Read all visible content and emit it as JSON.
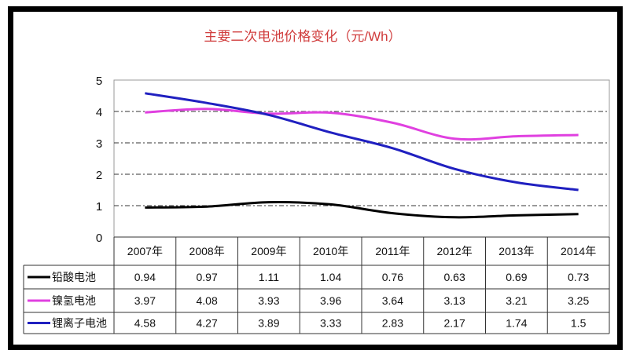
{
  "chart_data": {
    "type": "line",
    "title": "主要二次电池价格变化（元/Wh）",
    "categories": [
      "2007年",
      "2008年",
      "2009年",
      "2010年",
      "2011年",
      "2012年",
      "2013年",
      "2014年"
    ],
    "ylim": [
      0,
      5
    ],
    "yticks": [
      "0",
      "1",
      "2",
      "3",
      "4",
      "5"
    ],
    "grid": "horizontal dash-dot",
    "legend": "data table below chart",
    "series": [
      {
        "name": "铅酸电池",
        "color": "#000000",
        "values": [
          0.94,
          0.97,
          1.11,
          1.04,
          0.76,
          0.63,
          0.69,
          0.73
        ],
        "labels": [
          "0.94",
          "0.97",
          "1.11",
          "1.04",
          "0.76",
          "0.63",
          "0.69",
          "0.73"
        ]
      },
      {
        "name": "镍氢电池",
        "color": "#e040e0",
        "values": [
          3.97,
          4.08,
          3.93,
          3.96,
          3.64,
          3.13,
          3.21,
          3.25
        ],
        "labels": [
          "3.97",
          "4.08",
          "3.93",
          "3.96",
          "3.64",
          "3.13",
          "3.21",
          "3.25"
        ]
      },
      {
        "name": "锂离子电池",
        "color": "#2020c0",
        "values": [
          4.58,
          4.27,
          3.89,
          3.33,
          2.83,
          2.17,
          1.74,
          1.5
        ],
        "labels": [
          "4.58",
          "4.27",
          "3.89",
          "3.33",
          "2.83",
          "2.17",
          "1.74",
          "1.5"
        ]
      }
    ]
  },
  "colors": {
    "title": "#d03c3c",
    "frame": "#000000"
  }
}
